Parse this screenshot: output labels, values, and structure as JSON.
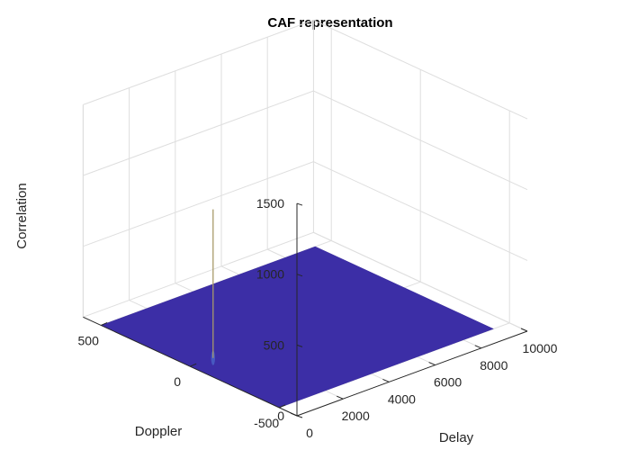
{
  "chart_data": {
    "type": "surface",
    "title": "CAF representation",
    "xlabel": "Delay",
    "ylabel": "Doppler",
    "zlabel": "Correlation",
    "x_ticks": [
      0,
      2000,
      4000,
      6000,
      8000,
      10000
    ],
    "y_ticks": [
      500,
      0,
      -500
    ],
    "z_ticks": [
      0,
      500,
      1000,
      1500
    ],
    "xlim": [
      0,
      10000
    ],
    "ylim": [
      -600,
      600
    ],
    "zlim": [
      0,
      1500
    ],
    "surface_color": "#3c2ea6",
    "peak": {
      "delay": 1000,
      "doppler": 0,
      "correlation": 1050
    },
    "floor_level": 0,
    "grid": true
  }
}
